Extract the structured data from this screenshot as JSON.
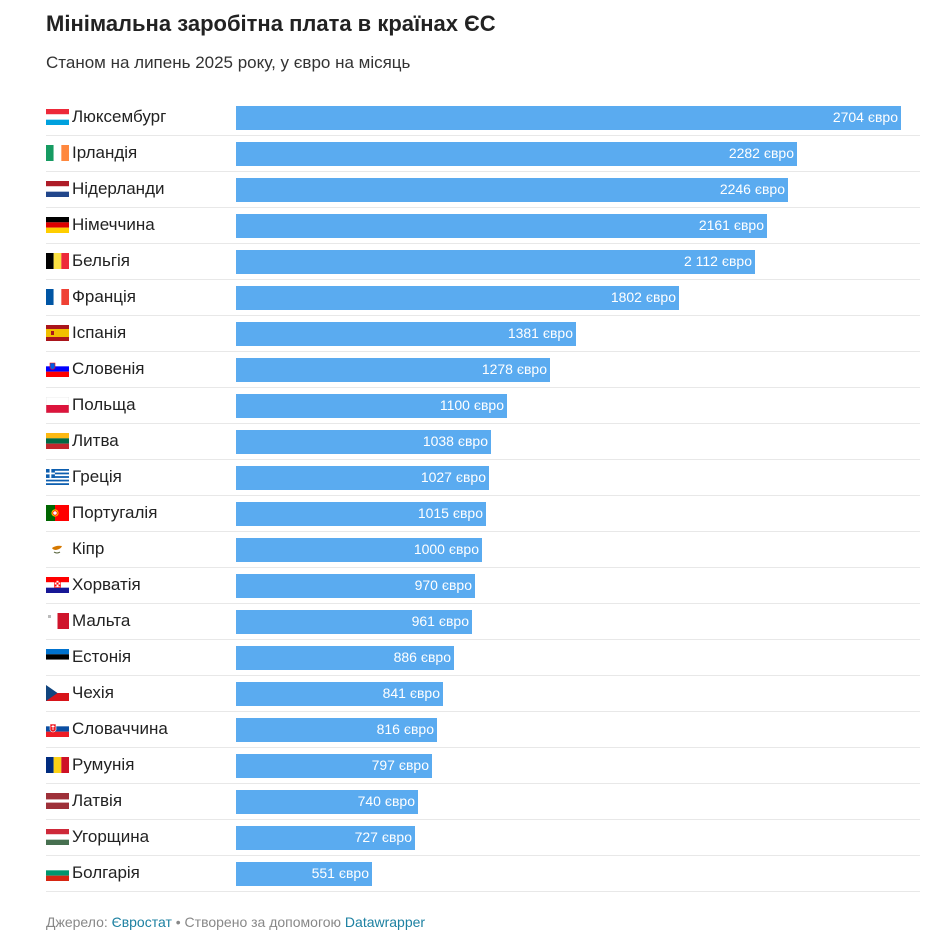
{
  "title": "Мінімальна заробітна плата в країнах ЄС",
  "subtitle": "Станом на липень 2025 року, у євро на місяць",
  "footer": {
    "source_prefix": "Джерело:",
    "source_link": "Євростат",
    "separator": "•",
    "created_prefix": "Створено за допомогою",
    "created_link": "Datawrapper"
  },
  "chart_data": {
    "type": "bar",
    "orientation": "horizontal",
    "bar_color": "#5aabf0",
    "value_suffix": "євро",
    "categories": [
      "Люксембург",
      "Ірландія",
      "Нідерланди",
      "Німеччина",
      "Бельгія",
      "Франція",
      "Іспанія",
      "Словенія",
      "Польща",
      "Литва",
      "Греція",
      "Португалія",
      "Кіпр",
      "Хорватія",
      "Мальта",
      "Естонія",
      "Чехія",
      "Словаччина",
      "Румунія",
      "Латвія",
      "Угорщина",
      "Болгарія"
    ],
    "values": [
      2704,
      2282,
      2246,
      2161,
      2112,
      1802,
      1381,
      1278,
      1100,
      1038,
      1027,
      1015,
      1000,
      970,
      961,
      886,
      841,
      816,
      797,
      740,
      727,
      551
    ],
    "value_labels": [
      "2704 євро",
      "2282 євро",
      "2246 євро",
      "2161 євро",
      "2 112 євро",
      "1802 євро",
      "1381 євро",
      "1278 євро",
      "1100 євро",
      "1038 євро",
      "1027 євро",
      "1015 євро",
      "1000 євро",
      "970 євро",
      "961 євро",
      "886 євро",
      "841 євро",
      "816 євро",
      "797 євро",
      "740 євро",
      "727 євро",
      "551 євро"
    ],
    "flag_icons": [
      "luxembourg-flag-icon",
      "ireland-flag-icon",
      "netherlands-flag-icon",
      "germany-flag-icon",
      "belgium-flag-icon",
      "france-flag-icon",
      "spain-flag-icon",
      "slovenia-flag-icon",
      "poland-flag-icon",
      "lithuania-flag-icon",
      "greece-flag-icon",
      "portugal-flag-icon",
      "cyprus-flag-icon",
      "croatia-flag-icon",
      "malta-flag-icon",
      "estonia-flag-icon",
      "czechia-flag-icon",
      "slovakia-flag-icon",
      "romania-flag-icon",
      "latvia-flag-icon",
      "hungary-flag-icon",
      "bulgaria-flag-icon"
    ],
    "xlim": [
      0,
      2704
    ]
  }
}
